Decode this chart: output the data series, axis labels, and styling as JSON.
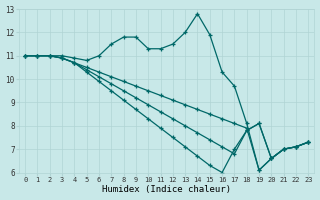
{
  "xlabel": "Humidex (Indice chaleur)",
  "ylabel": "",
  "bg_color": "#c8e8e8",
  "grid_color": "#b0d4d4",
  "line_color": "#006868",
  "marker": "+",
  "xlim": [
    -0.5,
    23.5
  ],
  "ylim": [
    6,
    13
  ],
  "xticks": [
    0,
    1,
    2,
    3,
    4,
    5,
    6,
    7,
    8,
    9,
    10,
    11,
    12,
    13,
    14,
    15,
    16,
    17,
    18,
    19,
    20,
    21,
    22,
    23
  ],
  "yticks": [
    6,
    7,
    8,
    9,
    10,
    11,
    12,
    13
  ],
  "lines": [
    {
      "x": [
        0,
        1,
        2,
        3,
        4,
        5,
        6,
        7,
        8,
        9,
        10,
        11,
        12,
        13,
        14,
        15,
        16,
        17,
        18,
        19,
        20,
        21,
        22,
        23
      ],
      "y": [
        11,
        11,
        11,
        11,
        10.9,
        10.8,
        11.0,
        11.5,
        11.8,
        11.8,
        11.3,
        11.3,
        11.5,
        12.0,
        12.8,
        11.9,
        10.3,
        9.7,
        8.1,
        6.1,
        6.6,
        7.0,
        7.1,
        7.3
      ]
    },
    {
      "x": [
        0,
        1,
        2,
        3,
        4,
        5,
        6,
        7,
        8,
        9,
        10,
        11,
        12,
        13,
        14,
        15,
        16,
        17,
        18,
        19,
        20,
        21,
        22,
        23
      ],
      "y": [
        11,
        11,
        11,
        10.9,
        10.7,
        10.5,
        10.3,
        10.1,
        9.9,
        9.7,
        9.5,
        9.3,
        9.1,
        8.9,
        8.7,
        8.5,
        8.3,
        8.1,
        7.9,
        6.1,
        6.6,
        7.0,
        7.1,
        7.3
      ]
    },
    {
      "x": [
        0,
        1,
        2,
        3,
        4,
        5,
        6,
        7,
        8,
        9,
        10,
        11,
        12,
        13,
        14,
        15,
        16,
        17,
        18,
        19,
        20,
        21,
        22,
        23
      ],
      "y": [
        11,
        11,
        11,
        10.9,
        10.7,
        10.4,
        10.1,
        9.8,
        9.5,
        9.2,
        8.9,
        8.6,
        8.3,
        8.0,
        7.7,
        7.4,
        7.1,
        6.8,
        7.8,
        8.1,
        6.6,
        7.0,
        7.1,
        7.3
      ]
    },
    {
      "x": [
        0,
        1,
        2,
        3,
        4,
        5,
        6,
        7,
        8,
        9,
        10,
        11,
        12,
        13,
        14,
        15,
        16,
        17,
        18,
        19,
        20,
        21,
        22,
        23
      ],
      "y": [
        11,
        11,
        11,
        10.9,
        10.7,
        10.3,
        9.9,
        9.5,
        9.1,
        8.7,
        8.3,
        7.9,
        7.5,
        7.1,
        6.7,
        6.3,
        6.0,
        7.0,
        7.8,
        8.1,
        6.6,
        7.0,
        7.1,
        7.3
      ]
    }
  ]
}
